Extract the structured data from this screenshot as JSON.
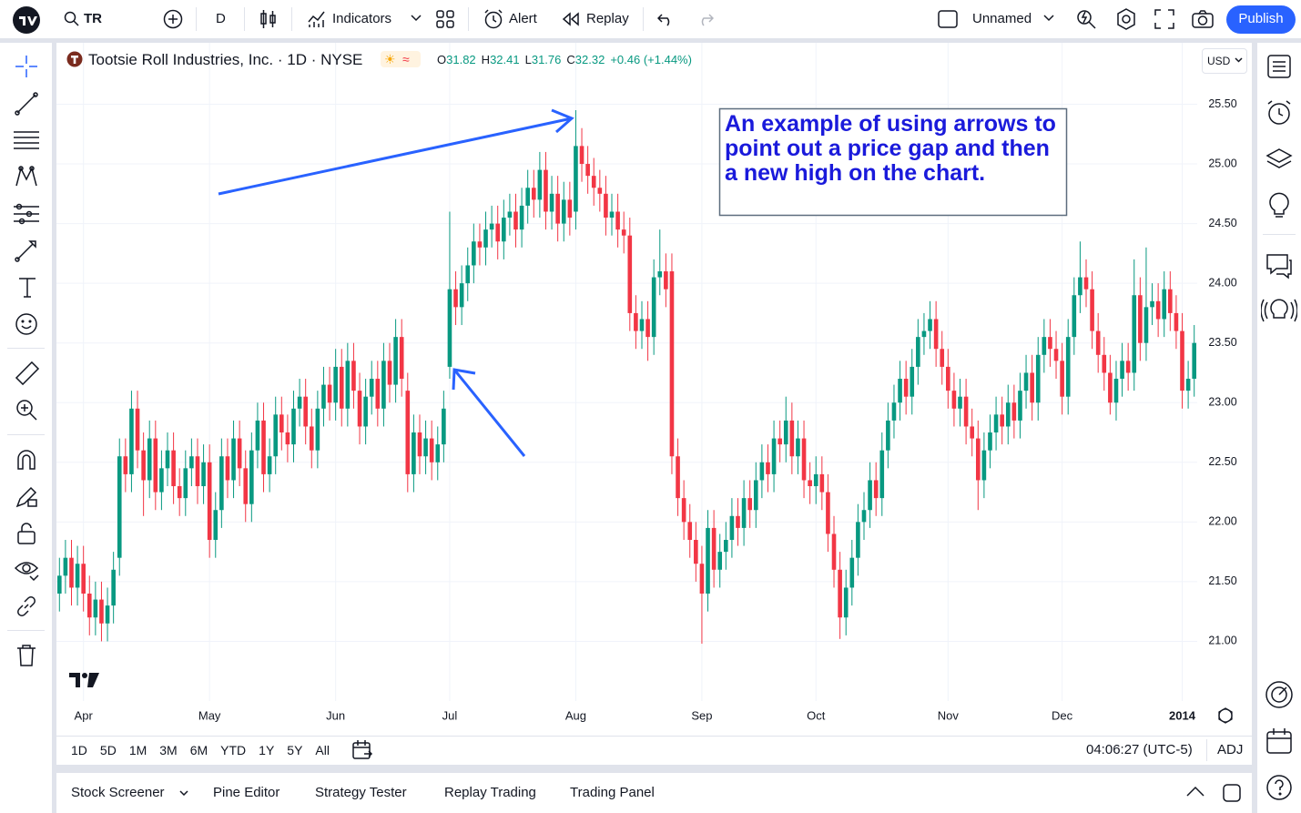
{
  "toolbar": {
    "symbol": "TR",
    "interval": "D",
    "indicators": "Indicators",
    "alert": "Alert",
    "replay": "Replay",
    "layout_name": "Unnamed",
    "publish": "Publish"
  },
  "legend": {
    "title": "Tootsie Roll Industries, Inc. · 1D · NYSE",
    "ohlc": [
      {
        "label": "O",
        "value": "31.82"
      },
      {
        "label": "H",
        "value": "32.41"
      },
      {
        "label": "L",
        "value": "31.76"
      },
      {
        "label": "C",
        "value": "32.32"
      }
    ],
    "change": "+0.46 (+1.44%)",
    "currency": "USD"
  },
  "annotation": "An example of using arrows to point out a price gap and then a new high on the chart.",
  "bottom_bar": {
    "timeframes": [
      "1D",
      "5D",
      "1M",
      "3M",
      "6M",
      "YTD",
      "1Y",
      "5Y",
      "All"
    ],
    "time": "04:06:27 (UTC-5)",
    "adj": "ADJ"
  },
  "tabs": [
    "Stock Screener",
    "Pine Editor",
    "Strategy Tester",
    "Replay Trading",
    "Trading Panel"
  ],
  "chart_data": {
    "type": "candlestick",
    "up_color": "#089981",
    "down_color": "#f23645",
    "grid": true,
    "ylim": [
      20.5,
      26.03
    ],
    "yticks": [
      {
        "value": 21,
        "label": "21.00"
      },
      {
        "value": 21.5,
        "label": "21.50"
      },
      {
        "value": 22,
        "label": "22.00"
      },
      {
        "value": 22.5,
        "label": "22.50"
      },
      {
        "value": 23,
        "label": "23.00"
      },
      {
        "value": 23.5,
        "label": "23.50"
      },
      {
        "value": 24,
        "label": "24.00"
      },
      {
        "value": 24.5,
        "label": "24.50"
      },
      {
        "value": 25,
        "label": "25.00"
      },
      {
        "value": 25.5,
        "label": "25.50"
      }
    ],
    "categories": [
      null,
      null,
      null,
      null,
      "Apr",
      null,
      null,
      null,
      null,
      null,
      null,
      null,
      null,
      null,
      null,
      null,
      null,
      null,
      null,
      null,
      null,
      null,
      null,
      null,
      null,
      "May",
      null,
      null,
      null,
      null,
      null,
      null,
      null,
      null,
      null,
      null,
      null,
      null,
      null,
      null,
      null,
      null,
      null,
      null,
      null,
      null,
      "Jun",
      null,
      null,
      null,
      null,
      null,
      null,
      null,
      null,
      null,
      null,
      null,
      null,
      null,
      null,
      null,
      null,
      null,
      null,
      "Jul",
      null,
      null,
      null,
      null,
      null,
      null,
      null,
      null,
      null,
      null,
      null,
      null,
      null,
      null,
      null,
      null,
      null,
      null,
      null,
      null,
      "Aug",
      null,
      null,
      null,
      null,
      null,
      null,
      null,
      null,
      null,
      null,
      null,
      null,
      null,
      null,
      null,
      null,
      null,
      null,
      null,
      null,
      "Sep",
      null,
      null,
      null,
      null,
      null,
      null,
      null,
      null,
      null,
      null,
      null,
      null,
      null,
      null,
      null,
      null,
      null,
      null,
      "Oct",
      null,
      null,
      null,
      null,
      null,
      null,
      null,
      null,
      null,
      null,
      null,
      null,
      null,
      null,
      null,
      null,
      null,
      null,
      null,
      null,
      null,
      "Nov",
      null,
      null,
      null,
      null,
      null,
      null,
      null,
      null,
      null,
      null,
      null,
      null,
      null,
      null,
      null,
      null,
      null,
      null,
      "Dec",
      null,
      null,
      null,
      null,
      null,
      null,
      null,
      null,
      null,
      null,
      null,
      null,
      null,
      null,
      null,
      null,
      null,
      null,
      null,
      "2014",
      null,
      null
    ],
    "open": [
      21.4,
      21.55,
      21.7,
      21.45,
      21.65,
      21.4,
      21.2,
      21.35,
      21.15,
      21.3,
      21.7,
      22.55,
      22.4,
      22.95,
      22.6,
      22.35,
      22.7,
      22.25,
      22.45,
      22.6,
      22.3,
      22.2,
      22.45,
      22.55,
      22.3,
      22.5,
      21.85,
      22.1,
      22.55,
      22.35,
      22.7,
      22.45,
      22.15,
      22.6,
      22.85,
      22.4,
      22.55,
      22.9,
      22.75,
      22.65,
      22.95,
      23.05,
      22.8,
      22.6,
      22.95,
      23.15,
      23.0,
      23.3,
      22.95,
      23.35,
      23.1,
      22.8,
      23.05,
      23.2,
      22.95,
      23.35,
      23.15,
      23.55,
      23.1,
      22.4,
      22.75,
      22.55,
      22.7,
      22.5,
      22.65,
      23.3,
      23.95,
      23.8,
      24.0,
      24.15,
      24.35,
      24.3,
      24.45,
      24.5,
      24.35,
      24.55,
      24.6,
      24.45,
      24.65,
      24.8,
      24.7,
      24.95,
      24.6,
      24.75,
      24.5,
      24.7,
      24.6,
      25.15,
      25.0,
      24.9,
      24.8,
      24.75,
      24.55,
      24.6,
      24.45,
      24.4,
      23.75,
      23.6,
      23.7,
      23.55,
      24.05,
      24.1,
      24.1,
      22.55,
      22.2,
      22.0,
      21.85,
      21.65,
      21.4,
      21.95,
      21.6,
      21.75,
      21.85,
      22.05,
      21.95,
      22.2,
      22.1,
      22.35,
      22.5,
      22.4,
      22.7,
      22.65,
      22.85,
      22.55,
      22.7,
      22.35,
      22.3,
      22.4,
      22.25,
      21.9,
      21.6,
      21.2,
      21.45,
      21.7,
      22.0,
      22.1,
      22.35,
      22.2,
      22.6,
      22.85,
      23.0,
      23.2,
      23.05,
      23.3,
      23.55,
      23.6,
      23.7,
      23.45,
      23.3,
      23.1,
      22.95,
      23.05,
      22.8,
      22.7,
      22.35,
      22.6,
      22.75,
      22.9,
      22.8,
      23.0,
      22.85,
      23.1,
      23.25,
      23.0,
      23.4,
      23.55,
      23.45,
      23.35,
      23.05,
      23.55,
      23.9,
      24.05,
      23.95,
      23.6,
      23.4,
      23.25,
      23.0,
      23.2,
      23.35,
      23.25,
      23.9,
      23.5,
      23.8,
      23.85,
      23.7,
      23.95,
      23.75,
      23.6,
      23.1,
      23.2
    ],
    "high": [
      21.7,
      21.85,
      21.85,
      21.8,
      21.8,
      21.55,
      21.5,
      21.5,
      21.45,
      21.75,
      22.7,
      22.7,
      23.1,
      23.1,
      22.75,
      22.85,
      22.85,
      22.6,
      22.75,
      22.75,
      22.45,
      22.6,
      22.7,
      22.7,
      22.65,
      22.65,
      22.25,
      22.7,
      22.7,
      22.85,
      22.85,
      22.6,
      22.75,
      23.0,
      23.0,
      22.7,
      23.05,
      23.05,
      22.9,
      23.1,
      23.2,
      23.2,
      22.95,
      23.1,
      23.3,
      23.3,
      23.45,
      23.45,
      23.5,
      23.5,
      23.25,
      23.2,
      23.35,
      23.35,
      23.5,
      23.5,
      23.7,
      23.7,
      23.25,
      22.9,
      22.9,
      22.85,
      22.85,
      22.8,
      23.1,
      24.6,
      24.1,
      24.15,
      24.3,
      24.5,
      24.5,
      24.6,
      24.65,
      24.65,
      24.7,
      24.75,
      24.75,
      24.8,
      24.95,
      24.95,
      25.1,
      25.1,
      24.9,
      24.9,
      24.85,
      24.85,
      25.45,
      25.3,
      25.15,
      25.05,
      24.95,
      24.9,
      24.75,
      24.75,
      24.6,
      24.55,
      23.9,
      23.85,
      23.85,
      24.2,
      24.45,
      24.25,
      24.25,
      22.7,
      22.35,
      22.15,
      22.0,
      21.8,
      22.1,
      22.1,
      21.9,
      22.0,
      22.2,
      22.2,
      22.35,
      22.35,
      22.5,
      22.65,
      22.65,
      22.85,
      22.85,
      23.05,
      23.0,
      22.85,
      22.85,
      22.5,
      22.55,
      22.55,
      22.4,
      22.05,
      21.75,
      21.6,
      21.85,
      22.15,
      22.25,
      22.5,
      22.5,
      22.75,
      23.0,
      23.15,
      23.35,
      23.35,
      23.45,
      23.7,
      23.75,
      23.85,
      23.85,
      23.6,
      23.45,
      23.25,
      23.2,
      23.2,
      22.95,
      22.85,
      22.75,
      22.9,
      23.05,
      23.05,
      23.15,
      23.15,
      23.25,
      23.4,
      23.4,
      23.55,
      23.7,
      23.7,
      23.6,
      23.5,
      23.7,
      24.05,
      24.35,
      24.2,
      24.1,
      23.75,
      23.55,
      23.4,
      23.35,
      23.5,
      23.5,
      24.2,
      24.05,
      24.3,
      24.0,
      24.0,
      24.1,
      24.1,
      23.9,
      23.75,
      23.35,
      23.65
    ],
    "low": [
      21.25,
      21.4,
      21.3,
      21.3,
      21.25,
      21.05,
      21.05,
      21.0,
      21.0,
      21.15,
      21.55,
      22.25,
      22.25,
      22.45,
      22.05,
      22.2,
      22.1,
      22.1,
      22.3,
      22.15,
      22.05,
      22.05,
      22.3,
      22.15,
      22.15,
      21.7,
      21.7,
      21.95,
      22.2,
      22.2,
      22.3,
      22.0,
      22.0,
      22.45,
      22.25,
      22.25,
      22.4,
      22.6,
      22.5,
      22.5,
      22.8,
      22.65,
      22.45,
      22.45,
      22.8,
      22.85,
      22.85,
      22.8,
      22.8,
      22.95,
      22.65,
      22.65,
      22.9,
      22.8,
      22.8,
      23.0,
      23.0,
      23.05,
      22.25,
      22.25,
      22.4,
      22.4,
      22.35,
      22.35,
      22.5,
      23.2,
      23.65,
      23.65,
      23.85,
      24.0,
      24.15,
      24.15,
      24.3,
      24.2,
      24.2,
      24.4,
      24.3,
      24.3,
      24.5,
      24.55,
      24.55,
      24.45,
      24.45,
      24.35,
      24.35,
      24.4,
      24.45,
      24.85,
      24.75,
      24.65,
      24.6,
      24.4,
      24.4,
      24.3,
      24.25,
      23.6,
      23.45,
      23.45,
      23.35,
      23.4,
      23.9,
      23.8,
      22.4,
      22.05,
      21.85,
      21.7,
      21.5,
      20.98,
      21.25,
      21.45,
      21.45,
      21.6,
      21.7,
      21.8,
      21.8,
      21.95,
      21.95,
      22.2,
      22.25,
      22.25,
      22.5,
      22.5,
      22.4,
      22.4,
      22.2,
      22.15,
      22.15,
      22.1,
      21.75,
      21.45,
      21.02,
      21.05,
      21.3,
      21.55,
      21.85,
      21.95,
      22.05,
      22.05,
      22.45,
      22.7,
      22.85,
      22.9,
      22.9,
      23.15,
      23.4,
      23.45,
      23.3,
      23.15,
      22.95,
      22.8,
      22.8,
      22.65,
      22.55,
      22.1,
      22.2,
      22.45,
      22.6,
      22.65,
      22.65,
      22.7,
      22.7,
      22.95,
      22.85,
      22.85,
      23.25,
      23.3,
      23.2,
      22.9,
      22.9,
      23.4,
      23.75,
      23.8,
      23.45,
      23.25,
      23.1,
      22.9,
      22.85,
      23.05,
      23.1,
      23.1,
      23.35,
      23.35,
      23.65,
      23.55,
      23.55,
      23.6,
      23.45,
      22.95,
      22.95,
      23.05
    ],
    "close": [
      21.55,
      21.7,
      21.45,
      21.65,
      21.4,
      21.2,
      21.35,
      21.15,
      21.3,
      21.6,
      22.55,
      22.4,
      22.95,
      22.6,
      22.35,
      22.7,
      22.25,
      22.45,
      22.6,
      22.3,
      22.2,
      22.45,
      22.55,
      22.3,
      22.5,
      21.85,
      22.1,
      22.55,
      22.35,
      22.7,
      22.45,
      22.15,
      22.6,
      22.85,
      22.4,
      22.55,
      22.9,
      22.75,
      22.65,
      22.95,
      23.05,
      22.8,
      22.6,
      22.95,
      23.15,
      23.0,
      23.3,
      22.95,
      23.35,
      23.1,
      22.8,
      23.05,
      23.2,
      22.95,
      23.35,
      23.15,
      23.55,
      23.2,
      22.4,
      22.75,
      22.55,
      22.7,
      22.5,
      22.65,
      22.95,
      23.95,
      23.8,
      24.0,
      24.15,
      24.35,
      24.3,
      24.45,
      24.5,
      24.35,
      24.55,
      24.6,
      24.45,
      24.65,
      24.8,
      24.7,
      24.95,
      24.6,
      24.75,
      24.5,
      24.7,
      24.55,
      25.15,
      25.0,
      24.9,
      24.8,
      24.75,
      24.55,
      24.6,
      24.45,
      24.4,
      23.75,
      23.6,
      23.7,
      23.55,
      24.05,
      24.1,
      23.95,
      22.55,
      22.2,
      22.0,
      21.85,
      21.65,
      21.4,
      21.95,
      21.6,
      21.75,
      21.85,
      22.05,
      21.95,
      22.2,
      22.1,
      22.35,
      22.5,
      22.4,
      22.7,
      22.65,
      22.85,
      22.55,
      22.7,
      22.35,
      22.3,
      22.4,
      22.25,
      21.9,
      21.6,
      21.2,
      21.45,
      21.7,
      22.0,
      22.1,
      22.35,
      22.2,
      22.6,
      22.85,
      23.0,
      23.2,
      23.05,
      23.3,
      23.55,
      23.6,
      23.7,
      23.45,
      23.3,
      23.1,
      22.95,
      23.05,
      22.8,
      22.7,
      22.35,
      22.6,
      22.75,
      22.9,
      22.8,
      23.0,
      22.85,
      23.1,
      23.25,
      23.0,
      23.4,
      23.55,
      23.45,
      23.35,
      23.05,
      23.55,
      23.9,
      24.05,
      23.95,
      23.6,
      23.4,
      23.25,
      23.0,
      23.2,
      23.35,
      23.25,
      23.9,
      23.5,
      23.8,
      23.85,
      23.7,
      23.95,
      23.75,
      23.6,
      23.1,
      23.2,
      23.5
    ]
  }
}
